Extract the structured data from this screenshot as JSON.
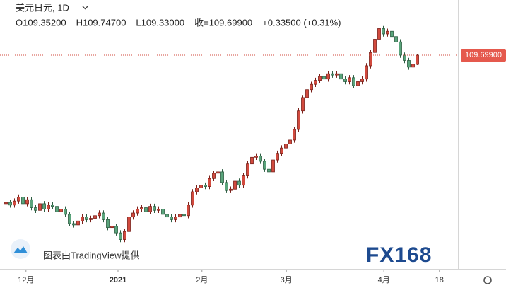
{
  "chart_data": {
    "type": "candlestick",
    "title": "美元日元, 1D",
    "ohlc_header": [
      "O109.35200",
      "H109.74700",
      "L109.33000",
      "收=109.69900",
      "+0.33500 (+0.31%)"
    ],
    "last_price_label": "109.69900",
    "credit": "图表由TradingView提供",
    "logo": "FX168",
    "up_color": "#d24a3e",
    "down_color": "#5aa57c",
    "xlim": [
      -1.33,
      106.67
    ],
    "xticks": [
      {
        "value": 4.8,
        "label": "12月"
      },
      {
        "value": 26.5,
        "label": "2021"
      },
      {
        "value": 46.3,
        "label": "2月"
      },
      {
        "value": 66.2,
        "label": "3月"
      },
      {
        "value": 89.2,
        "label": "4月"
      },
      {
        "value": 102.3,
        "label": "18"
      }
    ],
    "ylim": [
      101.75,
      111.78
    ],
    "open": [
      104.1,
      104.15,
      104.05,
      104.2,
      104.35,
      104.1,
      104.25,
      103.95,
      103.85,
      104.1,
      103.9,
      104.05,
      104.0,
      103.8,
      103.9,
      103.7,
      103.35,
      103.3,
      103.45,
      103.6,
      103.5,
      103.55,
      103.65,
      103.75,
      103.5,
      103.2,
      103.25,
      103.0,
      102.75,
      103.05,
      103.6,
      103.75,
      103.9,
      103.95,
      103.8,
      104.0,
      103.85,
      103.9,
      103.7,
      103.6,
      103.5,
      103.6,
      103.7,
      103.65,
      104.05,
      104.55,
      104.7,
      104.8,
      104.75,
      105.05,
      105.25,
      105.3,
      104.9,
      104.6,
      104.65,
      104.95,
      104.8,
      105.15,
      105.6,
      105.85,
      105.9,
      105.7,
      105.4,
      105.3,
      105.75,
      106.0,
      106.2,
      106.35,
      106.5,
      106.9,
      107.6,
      108.1,
      108.4,
      108.6,
      108.75,
      108.9,
      108.8,
      109.0,
      108.95,
      109.0,
      108.8,
      108.7,
      108.85,
      108.55,
      108.7,
      108.8,
      109.3,
      109.8,
      110.3,
      110.7,
      110.5,
      110.6,
      110.4,
      110.2,
      109.7,
      109.5,
      109.25,
      109.352
    ],
    "high": [
      104.25,
      104.25,
      104.3,
      104.45,
      104.45,
      104.35,
      104.35,
      104.05,
      104.2,
      104.2,
      104.15,
      104.15,
      104.1,
      104.0,
      104.0,
      103.8,
      103.45,
      103.55,
      103.7,
      103.7,
      103.65,
      103.75,
      103.85,
      103.85,
      103.6,
      103.35,
      103.35,
      103.1,
      103.15,
      103.7,
      103.85,
      104.0,
      104.05,
      104.05,
      104.1,
      104.1,
      104.0,
      104.0,
      103.8,
      103.7,
      103.7,
      103.8,
      103.8,
      104.15,
      104.65,
      104.8,
      104.9,
      104.9,
      105.15,
      105.35,
      105.4,
      105.4,
      105.0,
      104.75,
      105.05,
      105.05,
      105.25,
      105.7,
      105.95,
      106.0,
      106.0,
      105.8,
      105.5,
      105.85,
      106.1,
      106.3,
      106.45,
      106.6,
      107.0,
      107.7,
      108.2,
      108.5,
      108.7,
      108.85,
      109.0,
      109.0,
      109.1,
      109.1,
      109.1,
      109.1,
      108.9,
      108.95,
      108.95,
      108.8,
      108.9,
      109.4,
      109.9,
      110.4,
      110.8,
      110.8,
      110.7,
      110.7,
      110.5,
      110.3,
      109.8,
      109.6,
      109.46,
      109.747
    ],
    "low": [
      104.0,
      103.95,
      103.95,
      104.1,
      104.0,
      104.0,
      103.85,
      103.75,
      103.75,
      103.8,
      103.8,
      103.9,
      103.7,
      103.7,
      103.6,
      103.25,
      103.2,
      103.2,
      103.35,
      103.4,
      103.4,
      103.45,
      103.55,
      103.4,
      103.1,
      103.1,
      102.9,
      102.65,
      102.65,
      102.95,
      103.5,
      103.65,
      103.8,
      103.7,
      103.7,
      103.75,
      103.75,
      103.6,
      103.5,
      103.4,
      103.4,
      103.5,
      103.55,
      103.55,
      103.95,
      104.45,
      104.6,
      104.65,
      104.65,
      104.95,
      105.15,
      104.8,
      104.5,
      104.5,
      104.55,
      104.7,
      104.7,
      105.05,
      105.5,
      105.75,
      105.6,
      105.3,
      105.2,
      105.2,
      105.65,
      105.9,
      106.1,
      106.25,
      106.4,
      106.8,
      107.5,
      108.0,
      108.3,
      108.5,
      108.65,
      108.7,
      108.7,
      108.85,
      108.85,
      108.7,
      108.6,
      108.6,
      108.45,
      108.45,
      108.6,
      108.7,
      109.2,
      109.7,
      110.2,
      110.4,
      110.4,
      110.3,
      110.1,
      109.6,
      109.4,
      109.15,
      109.15,
      109.33
    ],
    "close": [
      104.15,
      104.05,
      104.2,
      104.35,
      104.1,
      104.25,
      103.95,
      103.85,
      104.1,
      103.9,
      104.05,
      104.0,
      103.8,
      103.9,
      103.7,
      103.35,
      103.3,
      103.45,
      103.6,
      103.5,
      103.55,
      103.65,
      103.75,
      103.5,
      103.2,
      103.25,
      103.0,
      102.75,
      103.05,
      103.6,
      103.75,
      103.9,
      103.95,
      103.8,
      104.0,
      103.85,
      103.9,
      103.7,
      103.6,
      103.5,
      103.6,
      103.7,
      103.65,
      104.05,
      104.55,
      104.7,
      104.8,
      104.75,
      105.05,
      105.25,
      105.3,
      104.9,
      104.6,
      104.65,
      104.95,
      104.8,
      105.15,
      105.6,
      105.85,
      105.9,
      105.7,
      105.4,
      105.3,
      105.75,
      106.0,
      106.2,
      106.35,
      106.5,
      106.9,
      107.6,
      108.1,
      108.4,
      108.6,
      108.75,
      108.9,
      108.8,
      109.0,
      108.95,
      109.0,
      108.8,
      108.7,
      108.85,
      108.55,
      108.7,
      108.8,
      109.3,
      109.8,
      110.3,
      110.7,
      110.5,
      110.6,
      110.4,
      110.2,
      109.7,
      109.5,
      109.25,
      109.36,
      109.699
    ]
  }
}
